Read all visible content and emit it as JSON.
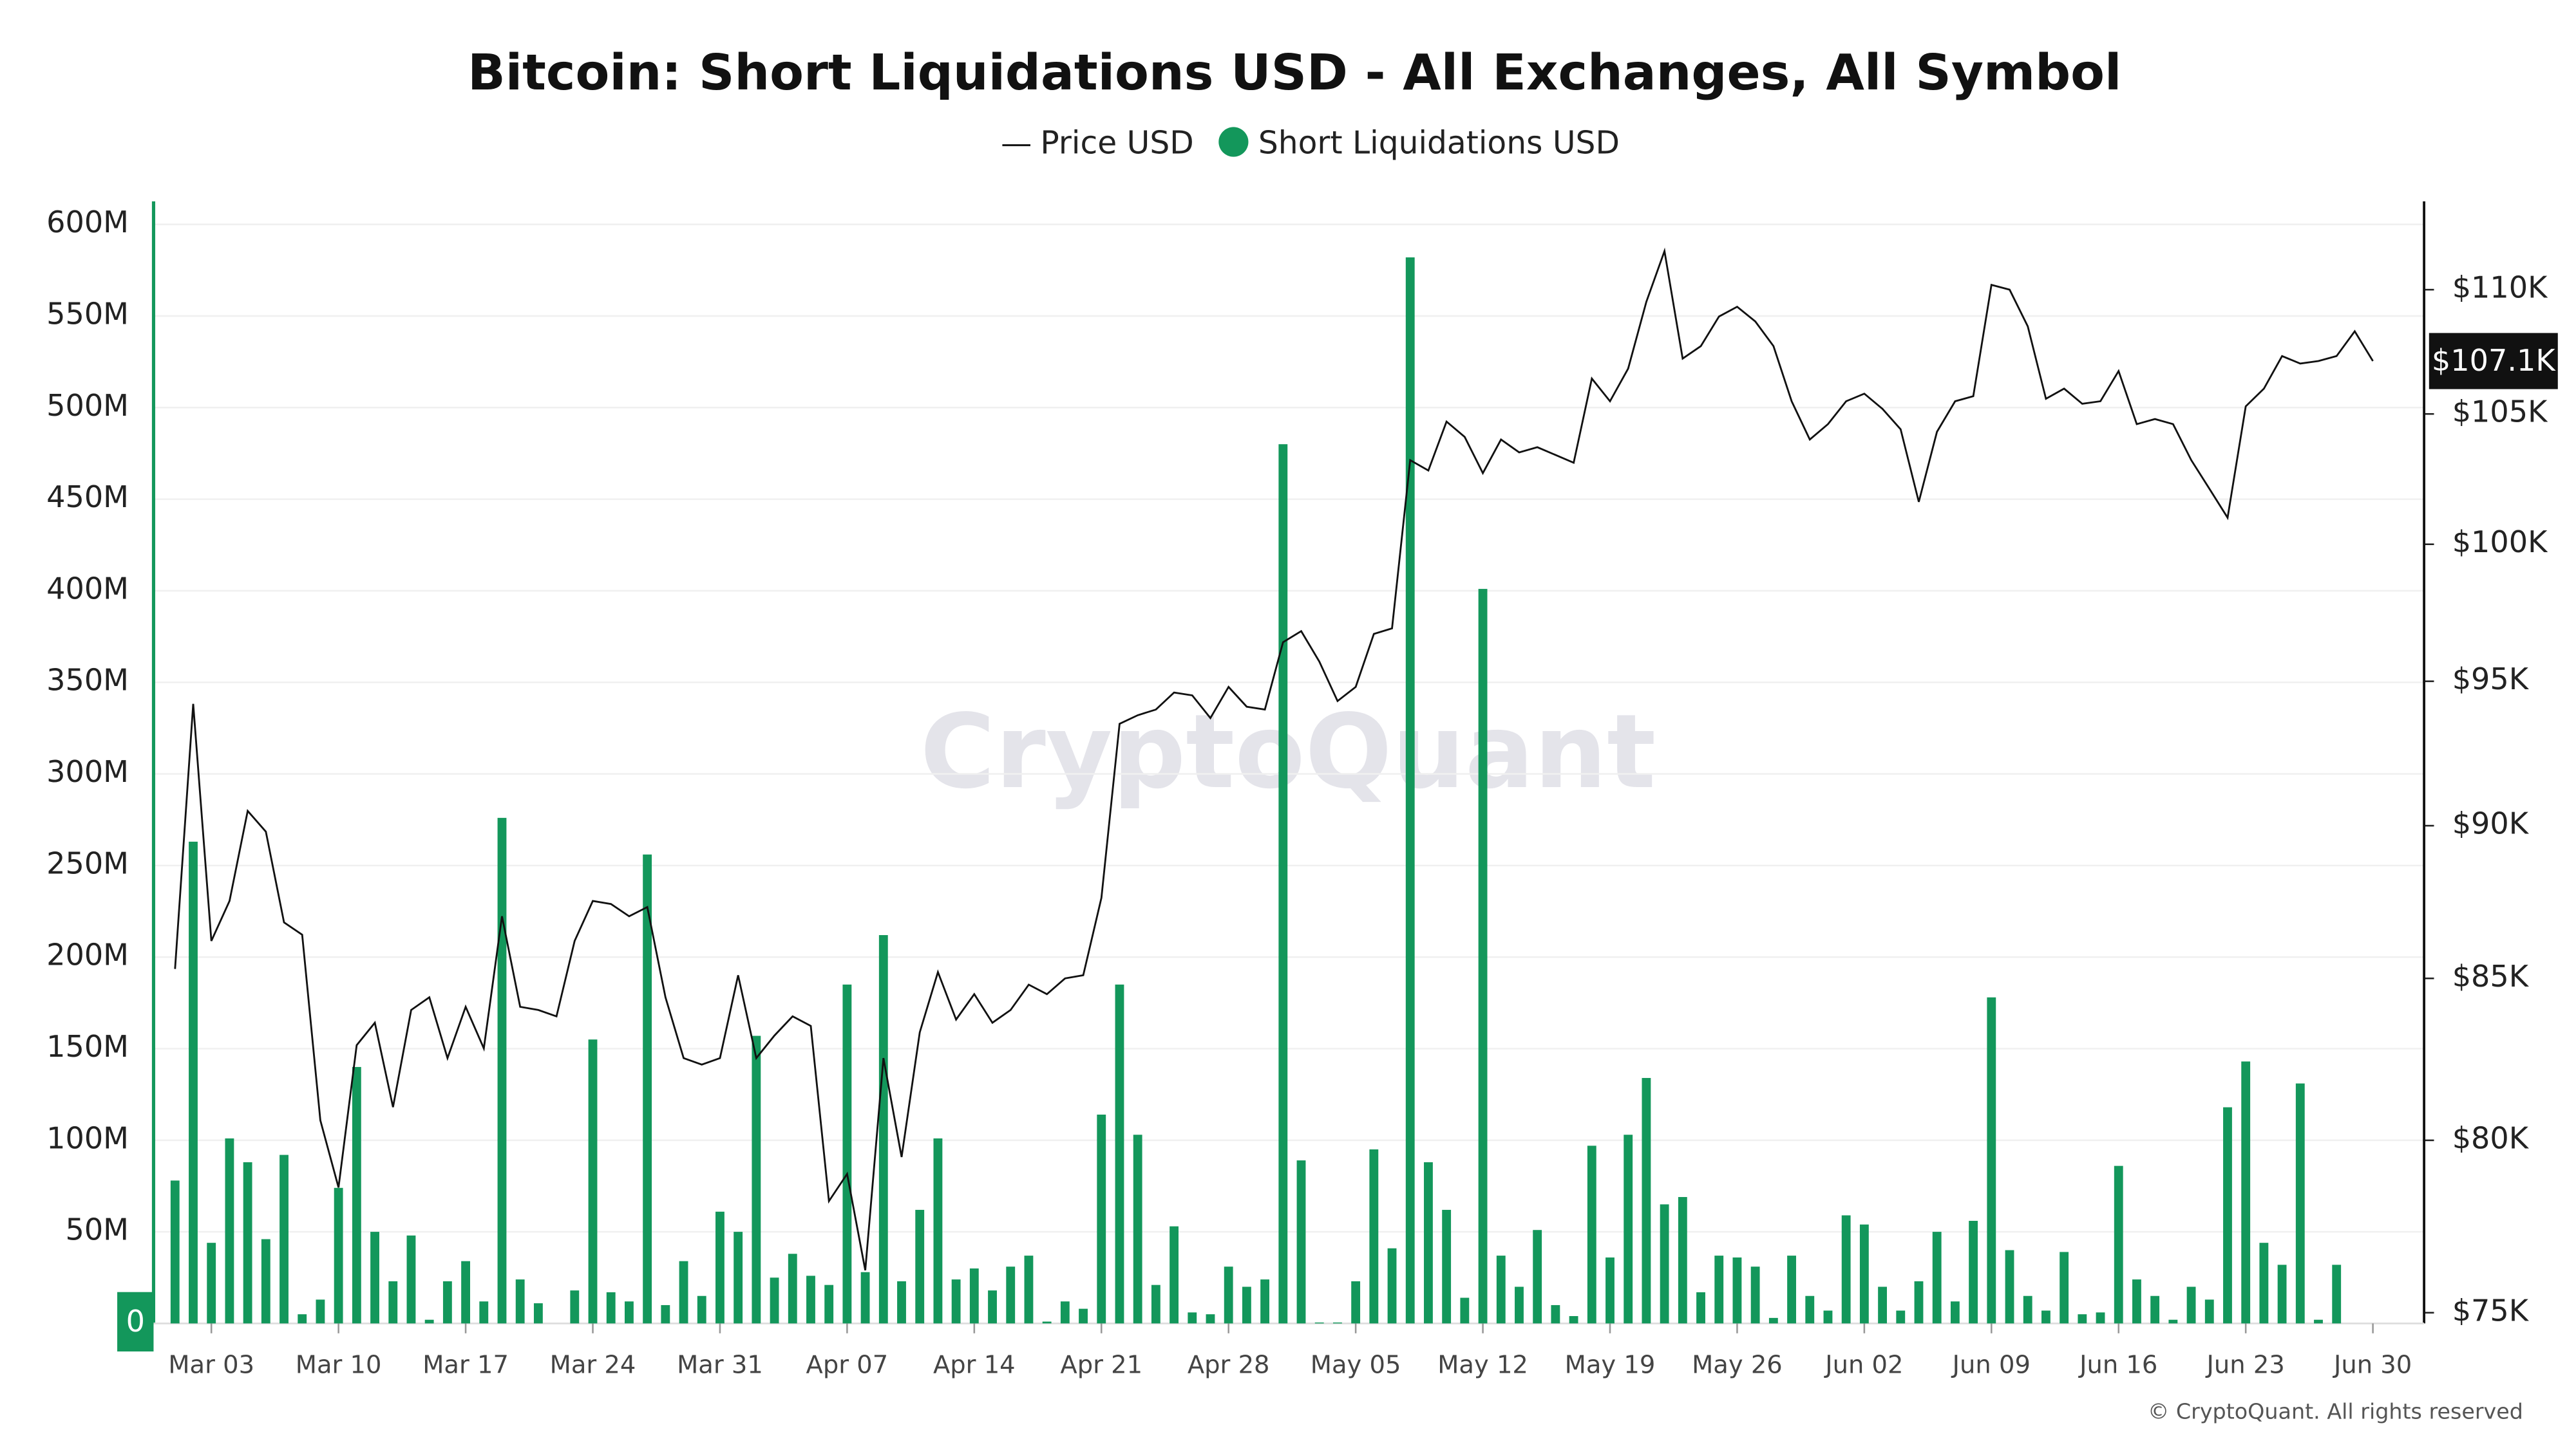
{
  "chart_data": {
    "type": "bar_line",
    "title": "Bitcoin: Short Liquidations USD - All Exchanges, All Symbol",
    "watermark": "CryptoQuant",
    "copyright": "© CryptoQuant. All rights reserved",
    "x": [
      "Mar 01",
      "Mar 02",
      "Mar 03",
      "Mar 04",
      "Mar 05",
      "Mar 06",
      "Mar 07",
      "Mar 08",
      "Mar 09",
      "Mar 10",
      "Mar 11",
      "Mar 12",
      "Mar 13",
      "Mar 14",
      "Mar 15",
      "Mar 16",
      "Mar 17",
      "Mar 18",
      "Mar 19",
      "Mar 20",
      "Mar 21",
      "Mar 22",
      "Mar 23",
      "Mar 24",
      "Mar 25",
      "Mar 26",
      "Mar 27",
      "Mar 28",
      "Mar 29",
      "Mar 30",
      "Mar 31",
      "Apr 01",
      "Apr 02",
      "Apr 03",
      "Apr 04",
      "Apr 05",
      "Apr 06",
      "Apr 07",
      "Apr 08",
      "Apr 09",
      "Apr 10",
      "Apr 11",
      "Apr 12",
      "Apr 13",
      "Apr 14",
      "Apr 15",
      "Apr 16",
      "Apr 17",
      "Apr 18",
      "Apr 19",
      "Apr 20",
      "Apr 21",
      "Apr 22",
      "Apr 23",
      "Apr 24",
      "Apr 25",
      "Apr 26",
      "Apr 27",
      "Apr 28",
      "Apr 29",
      "Apr 30",
      "May 01",
      "May 02",
      "May 03",
      "May 04",
      "May 05",
      "May 06",
      "May 07",
      "May 08",
      "May 09",
      "May 10",
      "May 11",
      "May 12",
      "May 13",
      "May 14",
      "May 15",
      "May 16",
      "May 17",
      "May 18",
      "May 19",
      "May 20",
      "May 21",
      "May 22",
      "May 23",
      "May 24",
      "May 25",
      "May 26",
      "May 27",
      "May 28",
      "May 29",
      "May 30",
      "May 31",
      "Jun 01",
      "Jun 02",
      "Jun 03",
      "Jun 04",
      "Jun 05",
      "Jun 06",
      "Jun 07",
      "Jun 08",
      "Jun 09",
      "Jun 10",
      "Jun 11",
      "Jun 12",
      "Jun 13",
      "Jun 14",
      "Jun 15",
      "Jun 16",
      "Jun 17",
      "Jun 18",
      "Jun 19",
      "Jun 20",
      "Jun 21",
      "Jun 22",
      "Jun 23",
      "Jun 24",
      "Jun 25",
      "Jun 26",
      "Jun 27",
      "Jun 28",
      "Jun 29",
      "Jun 30"
    ],
    "xticks": [
      "Mar 03",
      "Mar 10",
      "Mar 17",
      "Mar 24",
      "Mar 31",
      "Apr 07",
      "Apr 14",
      "Apr 21",
      "Apr 28",
      "May 05",
      "May 12",
      "May 19",
      "May 26",
      "Jun 02",
      "Jun 09",
      "Jun 16",
      "Jun 23",
      "Jun 30"
    ],
    "series": [
      {
        "name": "Price USD",
        "type": "line",
        "axis": "y2",
        "color": "#111111",
        "values": [
          85.3,
          94.2,
          86.2,
          87.5,
          90.5,
          89.8,
          86.8,
          86.4,
          80.6,
          78.6,
          82.9,
          83.6,
          81,
          84,
          84.4,
          82.5,
          84.1,
          82.8,
          87,
          84.1,
          84,
          83.8,
          86.2,
          87.5,
          87.4,
          87,
          87.3,
          84.4,
          82.5,
          82.3,
          82.5,
          85.1,
          82.5,
          83.2,
          83.8,
          83.5,
          78.2,
          79,
          76.2,
          82.5,
          79.5,
          83.3,
          85.2,
          83.7,
          84.5,
          83.6,
          84,
          84.8,
          84.5,
          85,
          85.1,
          87.6,
          93.5,
          93.8,
          94,
          94.6,
          94.5,
          93.7,
          94.8,
          94.1,
          94,
          96.4,
          96.8,
          95.7,
          94.3,
          94.8,
          96.7,
          96.9,
          103.2,
          102.8,
          104.7,
          104.1,
          102.7,
          104,
          103.5,
          103.7,
          103.4,
          103.1,
          106.4,
          105.5,
          106.8,
          109.5,
          111.6,
          107.2,
          107.7,
          108.9,
          109.3,
          108.7,
          107.7,
          105.5,
          104,
          104.6,
          105.5,
          105.8,
          105.2,
          104.4,
          101.6,
          104.3,
          105.5,
          105.7,
          110.2,
          110,
          108.5,
          105.6,
          106,
          105.4,
          105.5,
          106.7,
          104.6,
          104.8,
          104.6,
          103.2,
          102.1,
          101,
          105.3,
          106,
          107.3,
          107,
          107.1,
          107.3,
          108.3,
          107.1
        ]
      },
      {
        "name": "Short Liquidations USD",
        "type": "bar",
        "color": "#13975b",
        "values": [
          78,
          263,
          44,
          101,
          88,
          46,
          92,
          5,
          13,
          74,
          140,
          50,
          23,
          48,
          2,
          23,
          34,
          12,
          276,
          24,
          11,
          0,
          18,
          155,
          17,
          12,
          256,
          10,
          34,
          15,
          61,
          50,
          157,
          25,
          38,
          26,
          21,
          185,
          28,
          212,
          23,
          62,
          101,
          24,
          30,
          18,
          31,
          37,
          1,
          12,
          8,
          114,
          185,
          103,
          21,
          53,
          6,
          5,
          31,
          20,
          24,
          480,
          89,
          0.5,
          0.5,
          23,
          95,
          41,
          582,
          88,
          62,
          14,
          401,
          37,
          20,
          51,
          10,
          4,
          97,
          36,
          103,
          134,
          65,
          69,
          17,
          37,
          36,
          31,
          3,
          37,
          15,
          7,
          59,
          54,
          20,
          7,
          23,
          50,
          12,
          56,
          178,
          40,
          15,
          7,
          39,
          5,
          6,
          86,
          24,
          15,
          2,
          20,
          13,
          118,
          143,
          44,
          32,
          131,
          2,
          32,
          0,
          0
        ]
      }
    ],
    "ylim": [
      0,
      612.6
    ],
    "yticks": [
      {
        "value": 0,
        "label": "0"
      },
      {
        "value": 50,
        "label": "50M"
      },
      {
        "value": 100,
        "label": "100M"
      },
      {
        "value": 150,
        "label": "150M"
      },
      {
        "value": 200,
        "label": "200M"
      },
      {
        "value": 250,
        "label": "250M"
      },
      {
        "value": 300,
        "label": "300M"
      },
      {
        "value": 350,
        "label": "350M"
      },
      {
        "value": 400,
        "label": "400M"
      },
      {
        "value": 450,
        "label": "450M"
      },
      {
        "value": 500,
        "label": "500M"
      },
      {
        "value": 550,
        "label": "550M"
      },
      {
        "value": 600,
        "label": "600M"
      }
    ],
    "y2lim": [
      74.7,
      113.7
    ],
    "y2scale": "log",
    "y2ticks": [
      {
        "value": 75,
        "label": "$75K"
      },
      {
        "value": 80,
        "label": "$80K"
      },
      {
        "value": 85,
        "label": "$85K"
      },
      {
        "value": 90,
        "label": "$90K"
      },
      {
        "value": 95,
        "label": "$95K"
      },
      {
        "value": 100,
        "label": "$100K"
      },
      {
        "value": 105,
        "label": "$105K"
      },
      {
        "value": 110,
        "label": "$110K"
      }
    ],
    "last_price": {
      "value": 107.1,
      "label": "$107.1K"
    },
    "last_liquidation": 0,
    "grid": true,
    "legend": "top"
  }
}
